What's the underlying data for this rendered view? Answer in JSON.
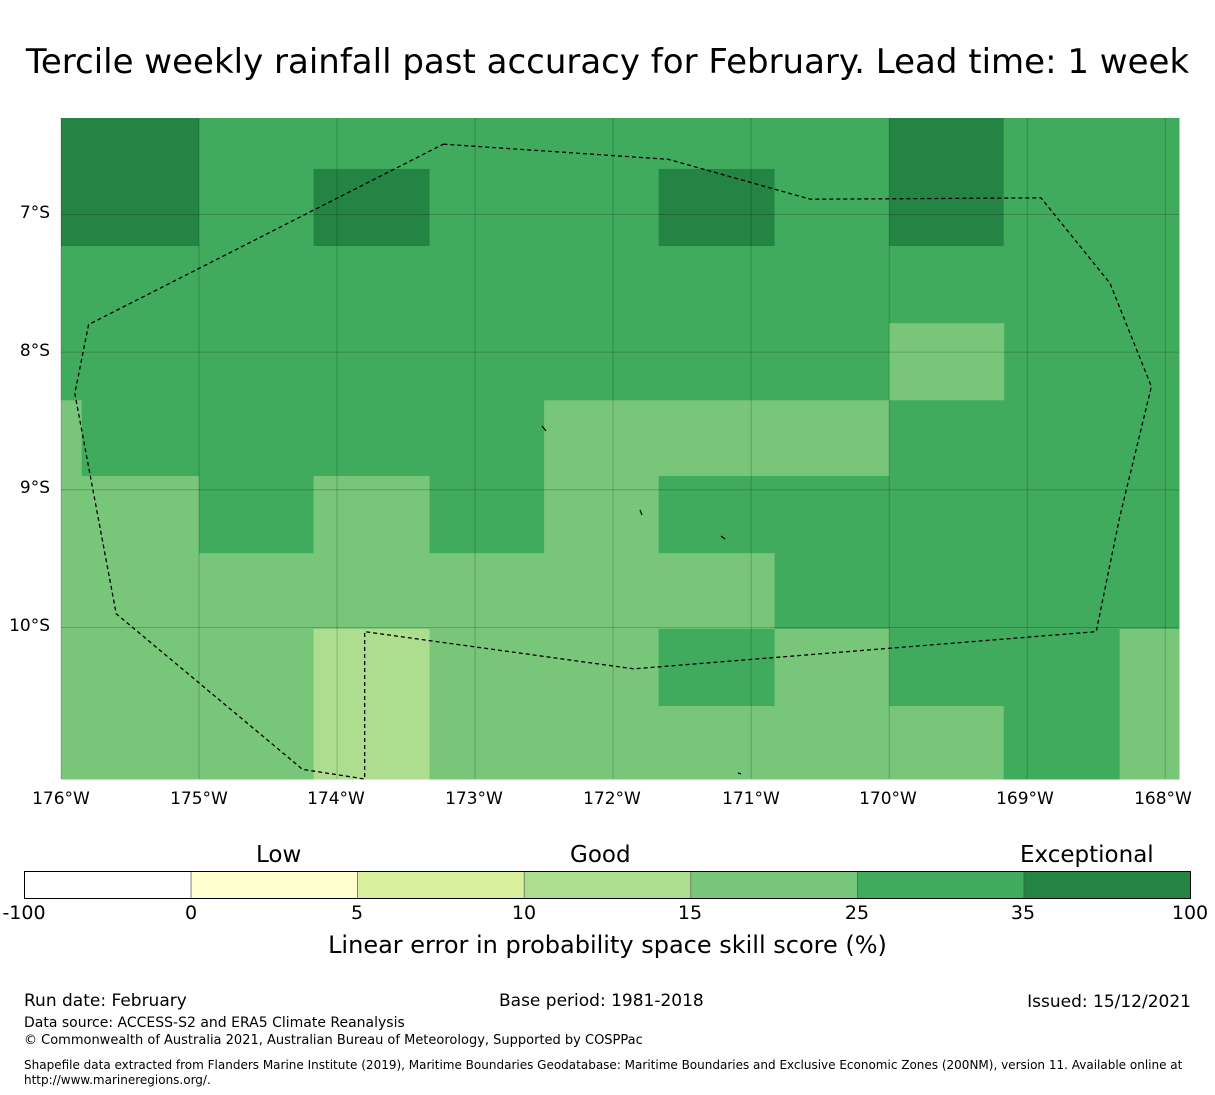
{
  "title": "Tercile weekly rainfall past accuracy for February. Lead time: 1 week",
  "colors": {
    "neg": "#ffffff",
    "c0_5": "#fffecc",
    "c5_10": "#d9f09d",
    "c10_15": "#addd8e",
    "c15_25": "#78c679",
    "c25_35": "#41ab5d",
    "c35_100": "#238443"
  },
  "map": {
    "lon_range": [
      -176,
      -167.9
    ],
    "lat_range": [
      -11.1,
      -6.3
    ],
    "x_ticks": [
      "176°W",
      "175°W",
      "174°W",
      "173°W",
      "172°W",
      "171°W",
      "170°W",
      "169°W",
      "168°W"
    ],
    "y_ticks": [
      "7°S",
      "8°S",
      "9°S",
      "10°S"
    ],
    "grid_cells_description": "skill score category per cell",
    "cells": [
      {
        "lon": [
          -176.0,
          -175.0
        ],
        "lat": [
          -7.23,
          -6.3
        ],
        "cat": "c35_100"
      },
      {
        "lon": [
          -175.0,
          -174.17
        ],
        "lat": [
          -7.23,
          -6.3
        ],
        "cat": "c25_35"
      },
      {
        "lon": [
          -174.17,
          -173.33
        ],
        "lat": [
          -6.67,
          -6.3
        ],
        "cat": "c25_35"
      },
      {
        "lon": [
          -174.17,
          -173.33
        ],
        "lat": [
          -7.23,
          -6.67
        ],
        "cat": "c35_100"
      },
      {
        "lon": [
          -173.33,
          -171.67
        ],
        "lat": [
          -7.23,
          -6.3
        ],
        "cat": "c25_35"
      },
      {
        "lon": [
          -171.67,
          -170.83
        ],
        "lat": [
          -6.67,
          -6.3
        ],
        "cat": "c25_35"
      },
      {
        "lon": [
          -171.67,
          -170.83
        ],
        "lat": [
          -7.23,
          -6.67
        ],
        "cat": "c35_100"
      },
      {
        "lon": [
          -170.83,
          -170.0
        ],
        "lat": [
          -7.23,
          -6.3
        ],
        "cat": "c25_35"
      },
      {
        "lon": [
          -170.0,
          -169.17
        ],
        "lat": [
          -7.23,
          -6.3
        ],
        "cat": "c35_100"
      },
      {
        "lon": [
          -169.17,
          -167.9
        ],
        "lat": [
          -7.23,
          -6.3
        ],
        "cat": "c25_35"
      },
      {
        "lon": [
          -176.0,
          -167.9
        ],
        "lat": [
          -8.35,
          -7.23
        ],
        "cat": "c25_35"
      },
      {
        "lon": [
          -170.0,
          -169.17
        ],
        "lat": [
          -8.35,
          -7.79
        ],
        "cat": "c15_25"
      },
      {
        "lon": [
          -176.0,
          -175.85
        ],
        "lat": [
          -8.9,
          -8.35
        ],
        "cat": "c15_25"
      },
      {
        "lon": [
          -175.85,
          -172.5
        ],
        "lat": [
          -8.9,
          -8.35
        ],
        "cat": "c25_35"
      },
      {
        "lon": [
          -172.5,
          -170.0
        ],
        "lat": [
          -8.9,
          -8.35
        ],
        "cat": "c15_25"
      },
      {
        "lon": [
          -170.0,
          -167.9
        ],
        "lat": [
          -8.9,
          -8.35
        ],
        "cat": "c25_35"
      },
      {
        "lon": [
          -176.0,
          -175.0
        ],
        "lat": [
          -9.46,
          -8.9
        ],
        "cat": "c15_25"
      },
      {
        "lon": [
          -175.0,
          -174.17
        ],
        "lat": [
          -9.46,
          -8.9
        ],
        "cat": "c25_35"
      },
      {
        "lon": [
          -174.17,
          -173.33
        ],
        "lat": [
          -9.46,
          -8.9
        ],
        "cat": "c15_25"
      },
      {
        "lon": [
          -173.33,
          -172.5
        ],
        "lat": [
          -9.46,
          -8.9
        ],
        "cat": "c25_35"
      },
      {
        "lon": [
          -172.5,
          -171.67
        ],
        "lat": [
          -9.46,
          -8.9
        ],
        "cat": "c15_25"
      },
      {
        "lon": [
          -171.67,
          -167.9
        ],
        "lat": [
          -9.46,
          -8.9
        ],
        "cat": "c25_35"
      },
      {
        "lon": [
          -176.0,
          -170.83
        ],
        "lat": [
          -10.01,
          -9.46
        ],
        "cat": "c15_25"
      },
      {
        "lon": [
          -170.83,
          -167.9
        ],
        "lat": [
          -10.01,
          -9.46
        ],
        "cat": "c25_35"
      },
      {
        "lon": [
          -176.0,
          -174.17
        ],
        "lat": [
          -11.1,
          -10.01
        ],
        "cat": "c15_25"
      },
      {
        "lon": [
          -174.17,
          -173.33
        ],
        "lat": [
          -11.1,
          -10.01
        ],
        "cat": "c10_15"
      },
      {
        "lon": [
          -173.33,
          -171.67
        ],
        "lat": [
          -11.1,
          -10.01
        ],
        "cat": "c15_25"
      },
      {
        "lon": [
          -171.67,
          -170.83
        ],
        "lat": [
          -10.57,
          -10.01
        ],
        "cat": "c25_35"
      },
      {
        "lon": [
          -171.67,
          -170.83
        ],
        "lat": [
          -11.1,
          -10.57
        ],
        "cat": "c15_25"
      },
      {
        "lon": [
          -170.83,
          -170.0
        ],
        "lat": [
          -11.1,
          -10.01
        ],
        "cat": "c15_25"
      },
      {
        "lon": [
          -170.0,
          -169.17
        ],
        "lat": [
          -10.57,
          -10.01
        ],
        "cat": "c25_35"
      },
      {
        "lon": [
          -170.0,
          -169.17
        ],
        "lat": [
          -11.1,
          -10.57
        ],
        "cat": "c15_25"
      },
      {
        "lon": [
          -169.17,
          -168.33
        ],
        "lat": [
          -11.1,
          -10.01
        ],
        "cat": "c25_35"
      },
      {
        "lon": [
          -168.33,
          -167.9
        ],
        "lat": [
          -11.1,
          -10.01
        ],
        "cat": "c15_25"
      }
    ],
    "eez_boundary": [
      [
        -173.23,
        -6.49
      ],
      [
        -171.6,
        -6.6
      ],
      [
        -170.57,
        -6.89
      ],
      [
        -168.9,
        -6.88
      ],
      [
        -168.4,
        -7.5
      ],
      [
        -168.1,
        -8.25
      ],
      [
        -168.33,
        -9.2
      ],
      [
        -168.5,
        -10.03
      ],
      [
        -171.85,
        -10.3
      ],
      [
        -173.8,
        -10.03
      ],
      [
        -173.8,
        -11.1
      ],
      [
        -174.25,
        -11.03
      ],
      [
        -175.6,
        -9.9
      ],
      [
        -175.9,
        -8.3
      ],
      [
        -175.8,
        -7.8
      ],
      [
        -173.23,
        -6.49
      ]
    ]
  },
  "colorbar": {
    "category_labels": [
      "Low",
      "Good",
      "Exceptional"
    ],
    "ticks": [
      "-100",
      "0",
      "5",
      "10",
      "15",
      "25",
      "35",
      "100"
    ],
    "segments": [
      "neg",
      "c0_5",
      "c5_10",
      "c10_15",
      "c15_25",
      "c25_35",
      "c35_100"
    ],
    "label": "Linear error in probability space skill score (%)"
  },
  "footer": {
    "run_date": "Run date: February",
    "base_period": "Base period: 1981-2018",
    "issued": "Issued: 15/12/2021",
    "data_source": "Data source: ACCESS-S2 and ERA5 Climate Reanalysis",
    "copyright": "© Commonwealth of Australia 2021, Australian Bureau of Meteorology, Supported by COSPPac",
    "shapefile_line1": "Shapefile data extracted from Flanders Marine Institute (2019), Maritime Boundaries Geodatabase: Maritime Boundaries and Exclusive Economic Zones (200NM), version 11. Available online at",
    "shapefile_line2": "http://www.marineregions.org/."
  }
}
